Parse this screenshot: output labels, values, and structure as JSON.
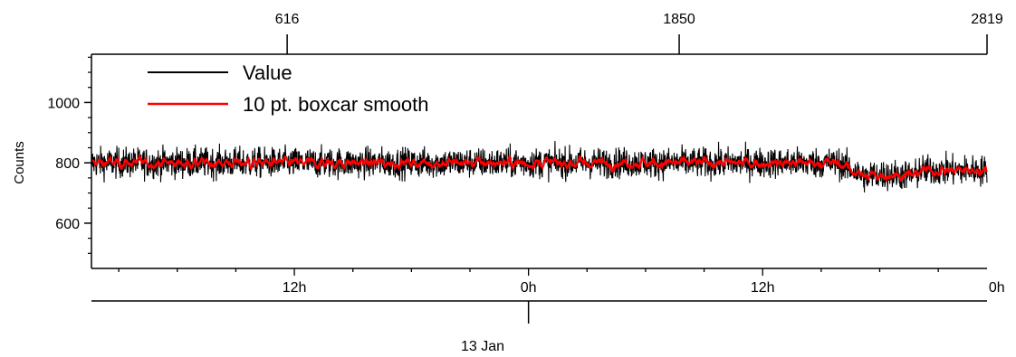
{
  "chart_data": {
    "type": "line",
    "ylabel": "Counts",
    "ylim": [
      450,
      1160
    ],
    "yticks": [
      {
        "value": 600,
        "label": "600"
      },
      {
        "value": 800,
        "label": "800"
      },
      {
        "value": 1000,
        "label": "1000"
      }
    ],
    "top_axis": {
      "range": [
        0,
        2819
      ],
      "ticks": [
        {
          "value": 616,
          "label": "616"
        },
        {
          "value": 1850,
          "label": "1850"
        },
        {
          "value": 2819,
          "label": "2819"
        }
      ]
    },
    "time_axis": {
      "range_hours": [
        -22.4,
        23.5
      ],
      "ticks": [
        {
          "hours": -12,
          "label": "12h"
        },
        {
          "hours": 0,
          "label": "0h"
        },
        {
          "hours": 12,
          "label": "12h"
        },
        {
          "hours": 24,
          "label": "0h"
        }
      ],
      "date_label": {
        "hours": 0,
        "label": "13 Jan"
      }
    },
    "legend": {
      "placement": "top-left",
      "entries": [
        {
          "label": "Value",
          "color": "#000000"
        },
        {
          "label": "10 pt. boxcar smooth",
          "color": "#ff0000"
        }
      ]
    },
    "series": [
      {
        "name": "Value",
        "color": "#000000",
        "points_count": 2820,
        "segments": [
          {
            "x_start": 0,
            "x_end": 2350,
            "mean": 800,
            "noise_amplitude": 45
          },
          {
            "x_start": 2350,
            "x_end": 2430,
            "mean": 745,
            "noise_amplitude": 45
          },
          {
            "x_start": 2430,
            "x_end": 2600,
            "mean": 760,
            "noise_amplitude": 45
          },
          {
            "x_start": 2600,
            "x_end": 2819,
            "mean": 775,
            "noise_amplitude": 45
          }
        ]
      },
      {
        "name": "10 pt. boxcar smooth",
        "color": "#ff0000",
        "window": 10
      }
    ]
  }
}
